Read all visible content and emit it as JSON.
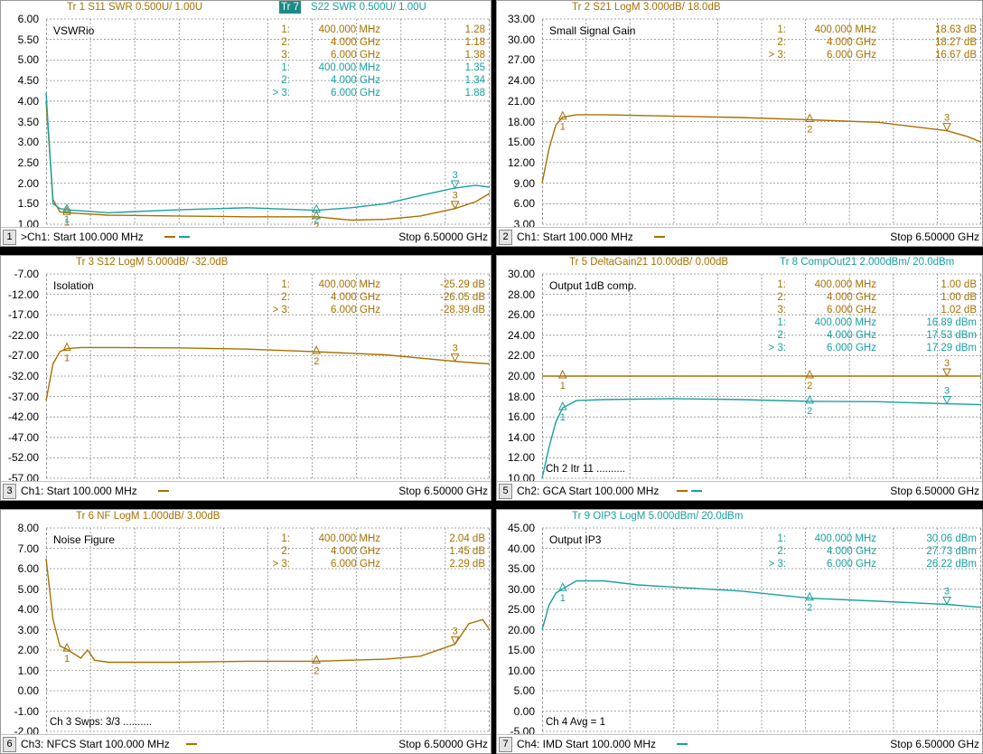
{
  "colors": {
    "gold": "#a87000",
    "cyan": "#1aa0a0",
    "grid": "#8a8a8a"
  },
  "windows": [
    {
      "id": "w1",
      "num": "1",
      "header": [
        {
          "t": "Tr  1  S11 SWR 0.500U/  1.00U",
          "c": "gold",
          "x": 73
        },
        {
          "t": "Tr  7",
          "c": "tr",
          "x": 308
        },
        {
          "t": "S22 SWR 0.500U/  1.00U",
          "c": "cyan",
          "x": 343
        }
      ],
      "title": "VSWRio",
      "yticks": [
        "6.00",
        "5.50",
        "5.00",
        "4.50",
        "4.00",
        "3.50",
        "3.00",
        "2.50",
        "2.00",
        "1.50",
        "1.00"
      ],
      "ytop": 6.0,
      "ybot": 1.0,
      "extraTop": "5.50",
      "extraBot": null,
      "markers": [
        {
          "n": "1:",
          "f": "400.000 MHz",
          "v": "1.28",
          "c": "gold"
        },
        {
          "n": "2:",
          "f": "4.000 GHz",
          "v": "1.18",
          "c": "gold"
        },
        {
          "n": "3:",
          "f": "6.000 GHz",
          "v": "1.38",
          "c": "gold"
        },
        {
          "n": "1:",
          "f": "400.000 MHz",
          "v": "1.35",
          "c": "cyan"
        },
        {
          "n": "2:",
          "f": "4.000 GHz",
          "v": "1.34",
          "c": "cyan"
        },
        {
          "n": "> 3:",
          "f": "6.000 GHz",
          "v": "1.88",
          "c": "cyan"
        }
      ],
      "footer_start": ">Ch1:  Start  100.000 MHz",
      "footer_stop": "Stop  6.50000 GHz",
      "legend": [
        "gold",
        "cyan"
      ],
      "status": ""
    },
    {
      "id": "w2",
      "num": "2",
      "header": [
        {
          "t": "Tr  2  S21 LogM 3.000dB/  18.0dB",
          "c": "gold",
          "x": 83
        }
      ],
      "title": "Small Signal Gain",
      "yticks": [
        "33.00",
        "30.00",
        "27.00",
        "24.00",
        "21.00",
        "18.00",
        "15.00",
        "12.00",
        "9.00",
        "6.00",
        "3.00"
      ],
      "markers": [
        {
          "n": "1:",
          "f": "400.000 MHz",
          "v": "18.63 dB",
          "c": "gold"
        },
        {
          "n": "2:",
          "f": "4.000 GHz",
          "v": "18.27 dB",
          "c": "gold"
        },
        {
          "n": "> 3:",
          "f": "6.000 GHz",
          "v": "16.67 dB",
          "c": "gold"
        }
      ],
      "footer_start": "Ch1:  Start  100.000 MHz",
      "footer_stop": "Stop  6.50000 GHz",
      "legend": [
        "gold"
      ],
      "status": ""
    },
    {
      "id": "w3",
      "num": "3",
      "header": [
        {
          "t": "Tr  3  S12 LogM 5.000dB/  -32.0dB",
          "c": "gold",
          "x": 83
        }
      ],
      "title": "Isolation",
      "yticks": [
        "-7.00",
        "-12.00",
        "-17.00",
        "-22.00",
        "-27.00",
        "-32.00",
        "-37.00",
        "-42.00",
        "-47.00",
        "-52.00",
        "-57.00"
      ],
      "markers": [
        {
          "n": "1:",
          "f": "400.000 MHz",
          "v": "-25.29 dB",
          "c": "gold"
        },
        {
          "n": "2:",
          "f": "4.000 GHz",
          "v": "-26.05 dB",
          "c": "gold"
        },
        {
          "n": "> 3:",
          "f": "6.000 GHz",
          "v": "-28.39 dB",
          "c": "gold"
        }
      ],
      "footer_start": "Ch1:  Start  100.000 MHz",
      "footer_stop": "Stop  6.50000 GHz",
      "legend": [
        "gold"
      ],
      "status": ""
    },
    {
      "id": "w4",
      "num": "5",
      "header": [
        {
          "t": "Tr  5  DeltaGain21 10.00dB/  0.00dB",
          "c": "gold",
          "x": 80
        },
        {
          "t": "Tr  8  CompOut21 2.000dBm/  20.0dBm",
          "c": "cyan",
          "x": 313
        }
      ],
      "title": "Output 1dB comp.",
      "yticks": [
        "30.00",
        "28.00",
        "26.00",
        "24.00",
        "22.00",
        "20.00",
        "18.00",
        "16.00",
        "14.00",
        "12.00",
        "10.00"
      ],
      "markers": [
        {
          "n": "1:",
          "f": "400.000 MHz",
          "v": "1.00 dB",
          "c": "gold"
        },
        {
          "n": "2:",
          "f": "4.000 GHz",
          "v": "1.00 dB",
          "c": "gold"
        },
        {
          "n": "3:",
          "f": "6.000 GHz",
          "v": "1.02 dB",
          "c": "gold"
        },
        {
          "n": "1:",
          "f": "400.000 MHz",
          "v": "16.89 dBm",
          "c": "cyan"
        },
        {
          "n": "2:",
          "f": "4.000 GHz",
          "v": "17.53 dBm",
          "c": "cyan"
        },
        {
          "n": "> 3:",
          "f": "6.000 GHz",
          "v": "17.29 dBm",
          "c": "cyan"
        }
      ],
      "footer_start": "Ch2: GCA  Start  100.000 MHz",
      "footer_stop": "Stop  6.50000 GHz",
      "legend": [
        "gold",
        "cyan"
      ],
      "status": "Ch 2  Itr 11 .........."
    },
    {
      "id": "w5",
      "num": "6",
      "header": [
        {
          "t": "Tr  6  NF LogM 1.000dB/  3.00dB",
          "c": "gold",
          "x": 83
        }
      ],
      "title": "Noise Figure",
      "yticks": [
        "8.00",
        "7.00",
        "6.00",
        "5.00",
        "4.00",
        "3.00",
        "2.00",
        "1.00",
        "0.00",
        "-1.00",
        "-2.00"
      ],
      "markers": [
        {
          "n": "1:",
          "f": "400.000 MHz",
          "v": "2.04 dB",
          "c": "gold"
        },
        {
          "n": "2:",
          "f": "4.000 GHz",
          "v": "1.45 dB",
          "c": "gold"
        },
        {
          "n": "> 3:",
          "f": "6.000 GHz",
          "v": "2.29 dB",
          "c": "gold"
        }
      ],
      "footer_start": "Ch3: NFCS  Start  100.000 MHz",
      "footer_stop": "Stop  6.50000 GHz",
      "legend": [
        "gold"
      ],
      "status": "Ch 3  Swps: 3/3 .........."
    },
    {
      "id": "w6",
      "num": "7",
      "header": [
        {
          "t": "Tr  9  OIP3 LogM 5.000dBm/  20.0dBm",
          "c": "cyan",
          "x": 83
        }
      ],
      "title": "Output IP3",
      "yticks": [
        "45.00",
        "40.00",
        "35.00",
        "30.00",
        "25.00",
        "20.00",
        "15.00",
        "10.00",
        "5.00",
        "0.00",
        "-5.00"
      ],
      "markers": [
        {
          "n": "1:",
          "f": "400.000 MHz",
          "v": "30.06 dBm",
          "c": "cyan"
        },
        {
          "n": "2:",
          "f": "4.000 GHz",
          "v": "27.73 dBm",
          "c": "cyan"
        },
        {
          "n": "> 3:",
          "f": "6.000 GHz",
          "v": "26.22 dBm",
          "c": "cyan"
        }
      ],
      "footer_start": "Ch4: IMD  Start  100.000 MHz",
      "footer_stop": "Stop  6.50000 GHz",
      "legend": [
        "cyan"
      ],
      "status": "Ch 4  Avg =     1"
    }
  ],
  "chart_data": [
    {
      "type": "line",
      "title": "VSWRio",
      "xlabel": "",
      "ylabel": "",
      "xlim": [
        "100.000 MHz",
        "6.50000 GHz"
      ],
      "ylim": [
        1.0,
        6.0
      ],
      "series": [
        {
          "name": "S11 SWR",
          "color": "gold",
          "x": [
            0.1,
            0.2,
            0.3,
            0.4,
            1,
            2,
            3,
            4,
            4.5,
            5,
            5.5,
            6,
            6.3,
            6.5
          ],
          "values": [
            4.0,
            1.6,
            1.3,
            1.28,
            1.22,
            1.2,
            1.18,
            1.18,
            1.1,
            1.12,
            1.2,
            1.38,
            1.55,
            1.75
          ]
        },
        {
          "name": "S22 SWR",
          "color": "cyan",
          "x": [
            0.1,
            0.2,
            0.3,
            0.4,
            1,
            2,
            3,
            4,
            4.5,
            5,
            5.5,
            6,
            6.3,
            6.5
          ],
          "values": [
            4.2,
            1.5,
            1.38,
            1.35,
            1.28,
            1.35,
            1.4,
            1.34,
            1.4,
            1.5,
            1.7,
            1.88,
            1.95,
            1.9
          ]
        }
      ]
    },
    {
      "type": "line",
      "title": "Small Signal Gain",
      "xlim": [
        "100.000 MHz",
        "6.50000 GHz"
      ],
      "ylim": [
        3,
        33
      ],
      "series": [
        {
          "name": "S21",
          "color": "gold",
          "x": [
            0.1,
            0.2,
            0.3,
            0.4,
            0.6,
            1,
            2,
            3,
            4,
            5,
            6,
            6.3,
            6.5
          ],
          "values": [
            9,
            14,
            17.5,
            18.63,
            19,
            19,
            18.8,
            18.6,
            18.27,
            17.9,
            16.67,
            15.8,
            15
          ]
        }
      ]
    },
    {
      "type": "line",
      "title": "Isolation",
      "xlim": [
        "100.000 MHz",
        "6.50000 GHz"
      ],
      "ylim": [
        -57,
        -7
      ],
      "series": [
        {
          "name": "S12",
          "color": "gold",
          "x": [
            0.1,
            0.2,
            0.3,
            0.4,
            0.6,
            1,
            2,
            3,
            4,
            5,
            6,
            6.3,
            6.5
          ],
          "values": [
            -38,
            -29,
            -26,
            -25.29,
            -25,
            -25,
            -25.1,
            -25.4,
            -26.05,
            -26.8,
            -28.39,
            -28.8,
            -29
          ]
        }
      ]
    },
    {
      "type": "line",
      "title": "Output 1dB comp.",
      "xlim": [
        "100.000 MHz",
        "6.50000 GHz"
      ],
      "ylim": [
        10,
        30
      ],
      "series": [
        {
          "name": "DeltaGain21",
          "color": "gold",
          "x": [
            0.1,
            6.5
          ],
          "values": [
            20.0,
            20.0
          ]
        },
        {
          "name": "CompOut21",
          "color": "cyan",
          "x": [
            0.1,
            0.2,
            0.3,
            0.4,
            0.6,
            1,
            2,
            3,
            4,
            5,
            6,
            6.5
          ],
          "values": [
            10,
            13,
            15.5,
            16.89,
            17.6,
            17.7,
            17.8,
            17.7,
            17.53,
            17.5,
            17.29,
            17.2
          ]
        }
      ]
    },
    {
      "type": "line",
      "title": "Noise Figure",
      "xlim": [
        "100.000 MHz",
        "6.50000 GHz"
      ],
      "ylim": [
        -2,
        8
      ],
      "series": [
        {
          "name": "NF",
          "color": "gold",
          "x": [
            0.1,
            0.2,
            0.3,
            0.4,
            0.6,
            0.7,
            0.8,
            1,
            2,
            3,
            4,
            5,
            5.5,
            6,
            6.2,
            6.4,
            6.5
          ],
          "values": [
            6.5,
            3.5,
            2.2,
            2.04,
            1.6,
            2.0,
            1.5,
            1.4,
            1.4,
            1.45,
            1.45,
            1.55,
            1.7,
            2.29,
            3.3,
            3.5,
            3.0
          ]
        }
      ]
    },
    {
      "type": "line",
      "title": "Output IP3",
      "xlim": [
        "100.000 MHz",
        "6.50000 GHz"
      ],
      "ylim": [
        -5,
        45
      ],
      "series": [
        {
          "name": "OIP3",
          "color": "cyan",
          "x": [
            0.1,
            0.2,
            0.3,
            0.4,
            0.6,
            1,
            1.5,
            2,
            3,
            4,
            5,
            6,
            6.5
          ],
          "values": [
            20,
            26,
            29,
            30.06,
            32,
            32,
            31,
            30.5,
            29.5,
            27.73,
            27,
            26.22,
            25.5
          ]
        }
      ]
    }
  ]
}
